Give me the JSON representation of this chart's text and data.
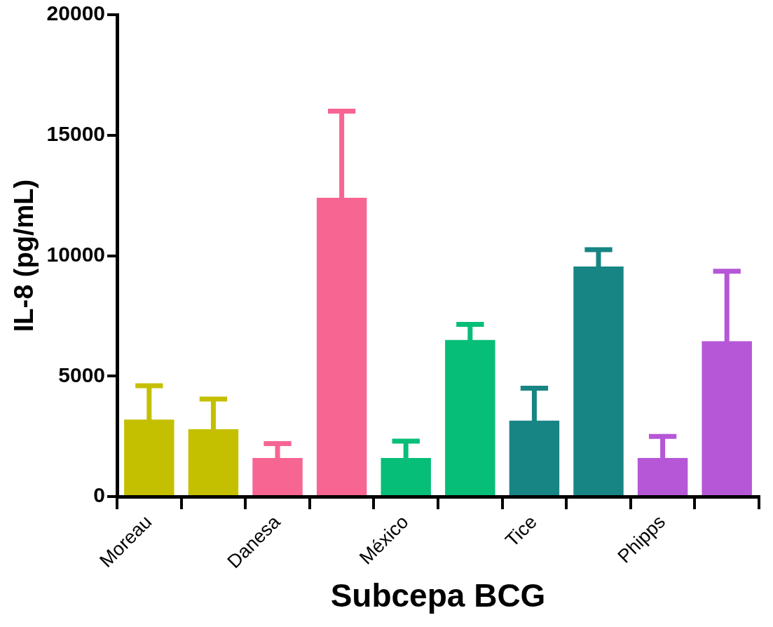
{
  "chart_data": {
    "type": "bar",
    "xlabel": "Subcepa BCG",
    "ylabel": "IL-8 (pg/mL)",
    "categories": [
      "Moreau",
      null,
      "Danesa",
      null,
      "México",
      null,
      "Tice",
      null,
      "Phipps",
      null
    ],
    "values": [
      3200,
      2800,
      1600,
      12400,
      1600,
      6500,
      3150,
      9550,
      1600,
      6450
    ],
    "colors": [
      "#c4c000",
      "#c4c000",
      "#f76592",
      "#f76592",
      "#07be78",
      "#07be78",
      "#178584",
      "#178584",
      "#b557d6",
      "#b557d6"
    ],
    "errors": [
      1400,
      1250,
      600,
      3600,
      700,
      650,
      1350,
      700,
      900,
      2900
    ],
    "ylim": [
      0,
      20000
    ],
    "yticks": [
      0,
      5000,
      10000,
      15000,
      20000
    ],
    "grid": false,
    "legend": false
  }
}
